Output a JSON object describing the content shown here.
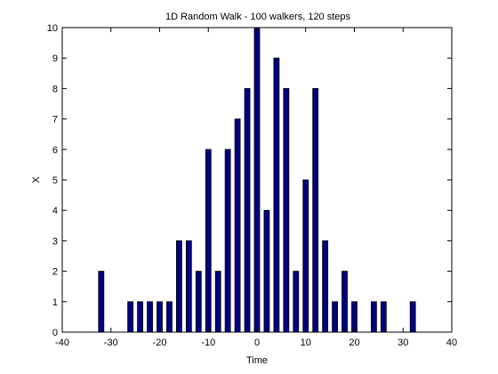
{
  "chart_data": {
    "type": "bar",
    "title": "1D Random Walk - 100 walkers, 120 steps",
    "xlabel": "Time",
    "ylabel": "X",
    "xlim": [
      -40,
      40
    ],
    "ylim": [
      0,
      10
    ],
    "xticks": [
      -40,
      -30,
      -20,
      -10,
      0,
      10,
      20,
      30,
      40
    ],
    "yticks": [
      0,
      1,
      2,
      3,
      4,
      5,
      6,
      7,
      8,
      9,
      10
    ],
    "bar_color": "#000080",
    "grid": false,
    "x": [
      -32,
      -26,
      -24,
      -22,
      -20,
      -18,
      -16,
      -14,
      -12,
      -10,
      -8,
      -6,
      -4,
      -2,
      0,
      2,
      4,
      6,
      8,
      10,
      12,
      14,
      16,
      18,
      20,
      24,
      26,
      32
    ],
    "values": [
      2,
      1,
      1,
      1,
      1,
      1,
      3,
      3,
      2,
      6,
      2,
      6,
      7,
      8,
      10,
      4,
      9,
      8,
      2,
      5,
      8,
      3,
      1,
      2,
      1,
      1,
      1,
      1
    ]
  }
}
